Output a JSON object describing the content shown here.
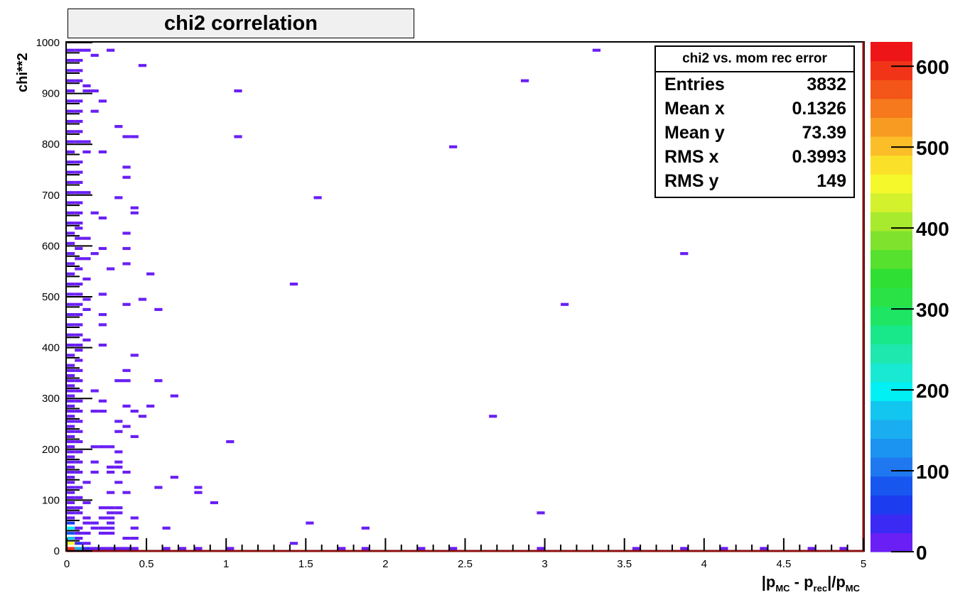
{
  "chart_data": {
    "type": "heatmap",
    "title": "chi2 correlation",
    "xlabel": "|p_MC - p_rec|/p_MC",
    "xlabel_parts": {
      "p1": "|p",
      "s1": "MC",
      "p2": " - p",
      "s2": "rec",
      "p3": "|/p",
      "s3": "MC"
    },
    "ylabel": "chi**2",
    "xlim": [
      0,
      5
    ],
    "ylim": [
      0,
      1000
    ],
    "x_ticks": [
      "0",
      "0.5",
      "1",
      "1.5",
      "2",
      "2.5",
      "3",
      "3.5",
      "4",
      "4.5",
      "5"
    ],
    "y_ticks": [
      "0",
      "100",
      "200",
      "300",
      "400",
      "500",
      "600",
      "700",
      "800",
      "900",
      "1000"
    ],
    "z_range": [
      0,
      630
    ],
    "z_ticks": [
      "0",
      "100",
      "200",
      "300",
      "400",
      "500",
      "600"
    ],
    "grid": false,
    "stats": {
      "name": "chi2 vs. mom rec error",
      "rows": [
        {
          "label": "Entries",
          "value": "3832"
        },
        {
          "label": "Mean x",
          "value": "0.1326"
        },
        {
          "label": "Mean y",
          "value": "73.39"
        },
        {
          "label": "RMS x",
          "value": "0.3993"
        },
        {
          "label": "RMS y",
          "value": "149"
        }
      ]
    },
    "bin_width": 0.05,
    "bin_height": 10,
    "bins": [
      [
        0,
        0,
        600
      ],
      [
        0,
        10,
        450
      ],
      [
        0,
        20,
        180
      ],
      [
        0,
        30,
        90
      ],
      [
        0,
        40,
        200
      ],
      [
        0,
        50,
        60
      ],
      [
        0.05,
        0,
        150
      ],
      [
        0.05,
        10,
        40
      ],
      [
        0.05,
        20,
        15
      ],
      [
        0.05,
        30,
        8
      ],
      [
        0.1,
        0,
        40
      ],
      [
        0.1,
        10,
        10
      ],
      [
        0.15,
        0,
        20
      ],
      [
        0.2,
        0,
        12
      ],
      [
        0.25,
        0,
        8
      ],
      [
        0.3,
        0,
        6
      ],
      [
        0.35,
        0,
        5
      ],
      [
        0.4,
        0,
        3
      ],
      [
        0.6,
        0,
        2
      ],
      [
        0.7,
        0,
        2
      ],
      [
        0.8,
        0,
        2
      ],
      [
        1.0,
        0,
        1
      ],
      [
        1.4,
        10,
        1
      ],
      [
        1.7,
        0,
        1
      ],
      [
        1.85,
        0,
        1
      ],
      [
        2.2,
        0,
        1
      ],
      [
        2.4,
        0,
        1
      ],
      [
        2.95,
        0,
        1
      ],
      [
        3.55,
        0,
        1
      ],
      [
        3.85,
        0,
        1
      ],
      [
        4.1,
        0,
        1
      ],
      [
        4.35,
        0,
        1
      ],
      [
        4.65,
        0,
        1
      ],
      [
        4.85,
        0,
        1
      ],
      [
        0.25,
        980,
        1
      ],
      [
        0.45,
        950,
        1
      ],
      [
        1.05,
        900,
        1
      ],
      [
        1.05,
        810,
        1
      ],
      [
        0.2,
        880,
        1
      ],
      [
        0.15,
        860,
        1
      ],
      [
        0.3,
        830,
        1
      ],
      [
        0.35,
        810,
        1
      ],
      [
        0.4,
        810,
        1
      ],
      [
        0.2,
        780,
        1
      ],
      [
        0.35,
        750,
        1
      ],
      [
        0.35,
        730,
        1
      ],
      [
        0.3,
        690,
        1
      ],
      [
        0.4,
        670,
        1
      ],
      [
        0.4,
        660,
        1
      ],
      [
        0.15,
        660,
        1
      ],
      [
        0.2,
        650,
        1
      ],
      [
        0.35,
        620,
        1
      ],
      [
        0.2,
        590,
        1
      ],
      [
        0.35,
        590,
        1
      ],
      [
        0.15,
        580,
        1
      ],
      [
        0.25,
        550,
        1
      ],
      [
        0.35,
        560,
        1
      ],
      [
        0.5,
        540,
        1
      ],
      [
        0.2,
        500,
        1
      ],
      [
        0.45,
        490,
        1
      ],
      [
        0.35,
        480,
        1
      ],
      [
        0.55,
        470,
        1
      ],
      [
        0.2,
        460,
        1
      ],
      [
        0.2,
        440,
        1
      ],
      [
        0.2,
        400,
        1
      ],
      [
        0.4,
        380,
        1
      ],
      [
        0.35,
        350,
        1
      ],
      [
        0.3,
        330,
        1
      ],
      [
        0.35,
        330,
        1
      ],
      [
        0.55,
        330,
        1
      ],
      [
        0.15,
        310,
        1
      ],
      [
        0.65,
        300,
        1
      ],
      [
        0.2,
        290,
        1
      ],
      [
        0.35,
        280,
        1
      ],
      [
        0.5,
        280,
        1
      ],
      [
        0.15,
        270,
        1
      ],
      [
        0.2,
        270,
        1
      ],
      [
        0.4,
        270,
        1
      ],
      [
        0.45,
        260,
        1
      ],
      [
        0.3,
        250,
        1
      ],
      [
        0.35,
        240,
        1
      ],
      [
        0.3,
        230,
        1
      ],
      [
        0.4,
        220,
        1
      ],
      [
        1.0,
        210,
        1
      ],
      [
        0.15,
        200,
        1
      ],
      [
        0.2,
        200,
        1
      ],
      [
        0.25,
        200,
        1
      ],
      [
        0.3,
        190,
        1
      ],
      [
        0.15,
        170,
        1
      ],
      [
        0.3,
        170,
        1
      ],
      [
        0.25,
        160,
        1
      ],
      [
        0.3,
        160,
        1
      ],
      [
        0.15,
        150,
        1
      ],
      [
        0.25,
        150,
        1
      ],
      [
        0.35,
        150,
        1
      ],
      [
        0.65,
        140,
        1
      ],
      [
        0.3,
        130,
        1
      ],
      [
        0.55,
        120,
        1
      ],
      [
        0.8,
        120,
        1
      ],
      [
        0.8,
        110,
        1
      ],
      [
        0.25,
        110,
        1
      ],
      [
        0.35,
        110,
        1
      ],
      [
        0.9,
        90,
        1
      ],
      [
        0.2,
        80,
        1
      ],
      [
        0.25,
        80,
        1
      ],
      [
        0.3,
        80,
        1
      ],
      [
        0.25,
        70,
        1
      ],
      [
        0.3,
        70,
        1
      ],
      [
        0.2,
        60,
        1
      ],
      [
        0.25,
        60,
        1
      ],
      [
        0.4,
        60,
        1
      ],
      [
        0.1,
        50,
        1
      ],
      [
        0.15,
        50,
        1
      ],
      [
        0.25,
        50,
        1
      ],
      [
        0.15,
        40,
        1
      ],
      [
        0.2,
        40,
        1
      ],
      [
        0.25,
        40,
        1
      ],
      [
        0.4,
        40,
        1
      ],
      [
        0.6,
        40,
        1
      ],
      [
        0.2,
        30,
        1
      ],
      [
        0.25,
        30,
        1
      ],
      [
        0.35,
        20,
        1
      ],
      [
        0.4,
        20,
        1
      ],
      [
        1.5,
        50,
        1
      ],
      [
        1.85,
        40,
        1
      ],
      [
        2.95,
        70,
        1
      ],
      [
        1.55,
        690,
        1
      ],
      [
        2.4,
        790,
        1
      ],
      [
        2.85,
        920,
        1
      ],
      [
        3.3,
        980,
        1
      ],
      [
        3.85,
        580,
        1
      ],
      [
        1.4,
        520,
        1
      ],
      [
        3.1,
        480,
        1
      ],
      [
        2.65,
        260,
        1
      ],
      [
        0.05,
        980,
        1
      ],
      [
        0.1,
        980,
        1
      ],
      [
        0.15,
        970,
        1
      ],
      [
        0.05,
        960,
        1
      ],
      [
        0.05,
        940,
        1
      ],
      [
        0.05,
        920,
        1
      ],
      [
        0.1,
        910,
        1
      ],
      [
        0.1,
        900,
        1
      ],
      [
        0.15,
        900,
        1
      ],
      [
        0.05,
        880,
        1
      ],
      [
        0.05,
        860,
        1
      ],
      [
        0.05,
        840,
        1
      ],
      [
        0.05,
        820,
        1
      ],
      [
        0.05,
        800,
        1
      ],
      [
        0.1,
        800,
        1
      ],
      [
        0.1,
        780,
        1
      ],
      [
        0.05,
        760,
        1
      ],
      [
        0.05,
        740,
        1
      ],
      [
        0.05,
        720,
        1
      ],
      [
        0.05,
        700,
        1
      ],
      [
        0.1,
        700,
        1
      ],
      [
        0.05,
        680,
        1
      ],
      [
        0.05,
        660,
        1
      ],
      [
        0.05,
        640,
        1
      ],
      [
        0.05,
        630,
        1
      ],
      [
        0.05,
        610,
        1
      ],
      [
        0.1,
        610,
        1
      ],
      [
        0.05,
        590,
        1
      ],
      [
        0.05,
        570,
        1
      ],
      [
        0.1,
        570,
        1
      ],
      [
        0.05,
        550,
        1
      ],
      [
        0.1,
        530,
        1
      ],
      [
        0.05,
        520,
        1
      ],
      [
        0.05,
        500,
        1
      ],
      [
        0.1,
        490,
        1
      ],
      [
        0.05,
        480,
        1
      ],
      [
        0.1,
        470,
        1
      ],
      [
        0.05,
        460,
        1
      ],
      [
        0.05,
        440,
        1
      ],
      [
        0.05,
        420,
        1
      ],
      [
        0.1,
        410,
        1
      ],
      [
        0.05,
        400,
        1
      ],
      [
        0.05,
        390,
        1
      ],
      [
        0.05,
        370,
        1
      ],
      [
        0.05,
        350,
        1
      ],
      [
        0.05,
        330,
        1
      ],
      [
        0.05,
        310,
        1
      ],
      [
        0.05,
        290,
        1
      ],
      [
        0.05,
        270,
        1
      ],
      [
        0.05,
        250,
        1
      ],
      [
        0.05,
        230,
        1
      ],
      [
        0.05,
        210,
        1
      ],
      [
        0.05,
        190,
        1
      ],
      [
        0.05,
        170,
        1
      ],
      [
        0.05,
        150,
        1
      ],
      [
        0.1,
        130,
        1
      ],
      [
        0.05,
        120,
        1
      ],
      [
        0.05,
        100,
        1
      ],
      [
        0.1,
        90,
        1
      ],
      [
        0.05,
        80,
        1
      ],
      [
        0.05,
        70,
        2
      ],
      [
        0.1,
        60,
        2
      ],
      [
        0.05,
        40,
        3
      ],
      [
        0.1,
        30,
        3
      ],
      [
        0,
        60,
        10
      ],
      [
        0,
        70,
        8
      ],
      [
        0,
        80,
        6
      ],
      [
        0,
        90,
        5
      ],
      [
        0,
        100,
        4
      ],
      [
        0,
        110,
        3
      ],
      [
        0,
        120,
        3
      ],
      [
        0,
        130,
        3
      ],
      [
        0,
        140,
        2
      ],
      [
        0,
        150,
        2
      ],
      [
        0,
        160,
        2
      ],
      [
        0,
        170,
        2
      ],
      [
        0,
        180,
        2
      ],
      [
        0,
        190,
        2
      ],
      [
        0,
        200,
        2
      ],
      [
        0,
        210,
        1
      ],
      [
        0,
        220,
        1
      ],
      [
        0,
        230,
        1
      ],
      [
        0,
        240,
        1
      ],
      [
        0,
        250,
        1
      ],
      [
        0,
        260,
        1
      ],
      [
        0,
        270,
        1
      ],
      [
        0,
        280,
        1
      ],
      [
        0,
        290,
        1
      ],
      [
        0,
        300,
        1
      ],
      [
        0,
        310,
        1
      ],
      [
        0,
        320,
        1
      ],
      [
        0,
        330,
        1
      ],
      [
        0,
        340,
        1
      ],
      [
        0,
        350,
        1
      ],
      [
        0,
        360,
        1
      ],
      [
        0,
        380,
        1
      ],
      [
        0,
        400,
        1
      ],
      [
        0,
        420,
        1
      ],
      [
        0,
        440,
        1
      ],
      [
        0,
        460,
        1
      ],
      [
        0,
        480,
        1
      ],
      [
        0,
        500,
        1
      ],
      [
        0,
        520,
        1
      ],
      [
        0,
        540,
        1
      ],
      [
        0,
        560,
        1
      ],
      [
        0,
        580,
        1
      ],
      [
        0,
        600,
        1
      ],
      [
        0,
        620,
        1
      ],
      [
        0,
        640,
        1
      ],
      [
        0,
        660,
        1
      ],
      [
        0,
        680,
        1
      ],
      [
        0,
        700,
        1
      ],
      [
        0,
        720,
        1
      ],
      [
        0,
        740,
        1
      ],
      [
        0,
        760,
        1
      ],
      [
        0,
        780,
        1
      ],
      [
        0,
        800,
        1
      ],
      [
        0,
        820,
        1
      ],
      [
        0,
        840,
        1
      ],
      [
        0,
        860,
        1
      ],
      [
        0,
        880,
        1
      ],
      [
        0,
        900,
        1
      ],
      [
        0,
        920,
        1
      ],
      [
        0,
        940,
        1
      ],
      [
        0,
        960,
        1
      ],
      [
        0,
        980,
        1
      ]
    ],
    "palette": [
      "#6a1ff4",
      "#3a2af4",
      "#1c3cf0",
      "#1856f0",
      "#1f78f0",
      "#1b93f0",
      "#1aaef0",
      "#12c6f0",
      "#00f0f4",
      "#19e9d2",
      "#1ee8ad",
      "#18e88a",
      "#1ee664",
      "#2ae245",
      "#30df33",
      "#56e12e",
      "#7fe22c",
      "#a8ea2e",
      "#d3f12c",
      "#f5f82b",
      "#fbe02a",
      "#fbbd28",
      "#f89b22",
      "#f6791d",
      "#f45518",
      "#f13418",
      "#ee1518"
    ]
  }
}
